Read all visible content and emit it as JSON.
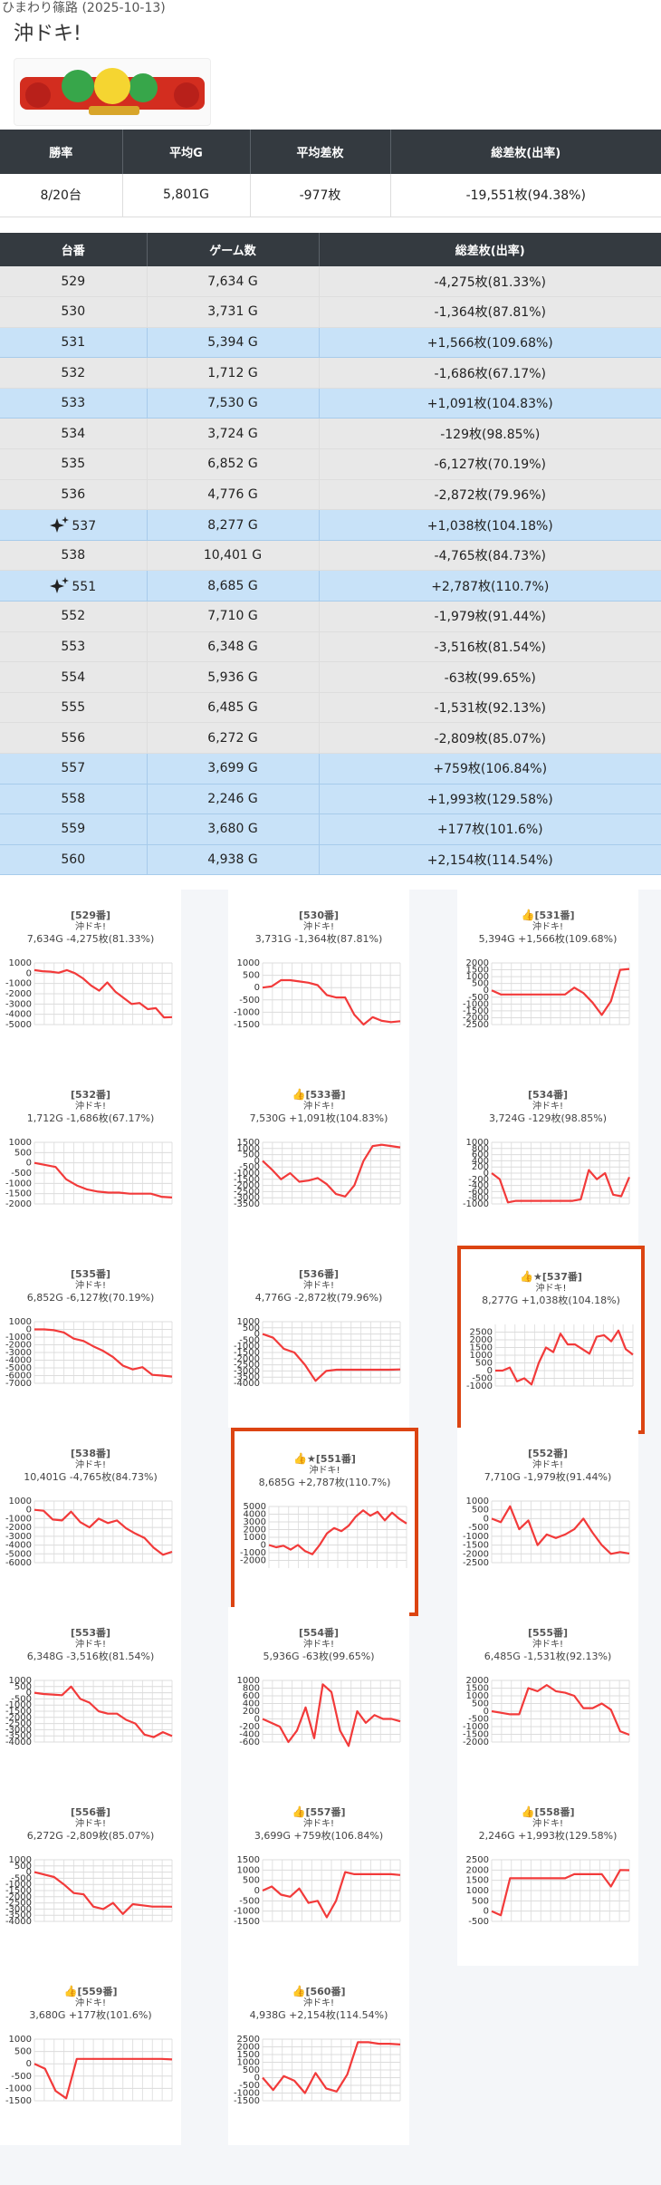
{
  "header": {
    "hall": "ひまわり篠路 (2025-10-13)",
    "title": "沖ドキ!",
    "logo_text": "沖ドキ!"
  },
  "summary": {
    "headers": [
      "勝率",
      "平均G",
      "平均差枚",
      "総差枚(出率)"
    ],
    "values": [
      "8/20台",
      "5,801G",
      "-977枚",
      "-19,551枚(94.38%)"
    ]
  },
  "machine_table": {
    "headers": [
      "台番",
      "ゲーム数",
      "総差枚(出率)"
    ],
    "rows": [
      {
        "no": "529",
        "games": "7,634 G",
        "diff": "-4,275枚(81.33%)",
        "win": false,
        "star": false
      },
      {
        "no": "530",
        "games": "3,731 G",
        "diff": "-1,364枚(87.81%)",
        "win": false,
        "star": false
      },
      {
        "no": "531",
        "games": "5,394 G",
        "diff": "+1,566枚(109.68%)",
        "win": true,
        "star": false
      },
      {
        "no": "532",
        "games": "1,712 G",
        "diff": "-1,686枚(67.17%)",
        "win": false,
        "star": false
      },
      {
        "no": "533",
        "games": "7,530 G",
        "diff": "+1,091枚(104.83%)",
        "win": true,
        "star": false
      },
      {
        "no": "534",
        "games": "3,724 G",
        "diff": "-129枚(98.85%)",
        "win": false,
        "star": false
      },
      {
        "no": "535",
        "games": "6,852 G",
        "diff": "-6,127枚(70.19%)",
        "win": false,
        "star": false
      },
      {
        "no": "536",
        "games": "4,776 G",
        "diff": "-2,872枚(79.96%)",
        "win": false,
        "star": false
      },
      {
        "no": "537",
        "games": "8,277 G",
        "diff": "+1,038枚(104.18%)",
        "win": true,
        "star": true
      },
      {
        "no": "538",
        "games": "10,401 G",
        "diff": "-4,765枚(84.73%)",
        "win": false,
        "star": false
      },
      {
        "no": "551",
        "games": "8,685 G",
        "diff": "+2,787枚(110.7%)",
        "win": true,
        "star": true
      },
      {
        "no": "552",
        "games": "7,710 G",
        "diff": "-1,979枚(91.44%)",
        "win": false,
        "star": false
      },
      {
        "no": "553",
        "games": "6,348 G",
        "diff": "-3,516枚(81.54%)",
        "win": false,
        "star": false
      },
      {
        "no": "554",
        "games": "5,936 G",
        "diff": "-63枚(99.65%)",
        "win": false,
        "star": false
      },
      {
        "no": "555",
        "games": "6,485 G",
        "diff": "-1,531枚(92.13%)",
        "win": false,
        "star": false
      },
      {
        "no": "556",
        "games": "6,272 G",
        "diff": "-2,809枚(85.07%)",
        "win": false,
        "star": false
      },
      {
        "no": "557",
        "games": "3,699 G",
        "diff": "+759枚(106.84%)",
        "win": true,
        "star": false
      },
      {
        "no": "558",
        "games": "2,246 G",
        "diff": "+1,993枚(129.58%)",
        "win": true,
        "star": false
      },
      {
        "no": "559",
        "games": "3,680 G",
        "diff": "+177枚(101.6%)",
        "win": true,
        "star": false
      },
      {
        "no": "560",
        "games": "4,938 G",
        "diff": "+2,154枚(114.54%)",
        "win": true,
        "star": false
      }
    ]
  },
  "chart_data": [
    {
      "type": "line",
      "title": "[529番]",
      "subtitle": "沖ドキ!",
      "stats": "7,634G -4,275枚(81.33%)",
      "thumb": false,
      "star": false,
      "highlight": false,
      "ylim": [
        -5000,
        1000
      ],
      "yticks": [
        1000,
        0,
        -1000,
        -2000,
        -3000,
        -4000,
        -5000
      ],
      "values": [
        300,
        200,
        150,
        50,
        300,
        0,
        -500,
        -1200,
        -1700,
        -900,
        -1800,
        -2400,
        -3000,
        -2900,
        -3500,
        -3400,
        -4300,
        -4275
      ]
    },
    {
      "type": "line",
      "title": "[530番]",
      "subtitle": "沖ドキ!",
      "stats": "3,731G -1,364枚(87.81%)",
      "thumb": false,
      "star": false,
      "highlight": false,
      "ylim": [
        -1500,
        1000
      ],
      "yticks": [
        1000,
        500,
        0,
        -500,
        -1000,
        -1500
      ],
      "values": [
        0,
        50,
        300,
        300,
        250,
        200,
        100,
        -300,
        -400,
        -400,
        -1100,
        -1500,
        -1200,
        -1350,
        -1400,
        -1364
      ]
    },
    {
      "type": "line",
      "title": "[531番]",
      "subtitle": "沖ドキ!",
      "stats": "5,394G +1,566枚(109.68%)",
      "thumb": true,
      "star": false,
      "highlight": false,
      "ylim": [
        -2500,
        2000
      ],
      "yticks": [
        2000,
        1500,
        1000,
        500,
        0,
        -500,
        -1000,
        -1500,
        -2000,
        -2500
      ],
      "values": [
        0,
        -300,
        -300,
        -300,
        -300,
        -300,
        -300,
        -300,
        -300,
        200,
        -200,
        -900,
        -1800,
        -800,
        1500,
        1566
      ]
    },
    {
      "type": "line",
      "title": "[532番]",
      "subtitle": "沖ドキ!",
      "stats": "1,712G -1,686枚(67.17%)",
      "thumb": false,
      "star": false,
      "highlight": false,
      "ylim": [
        -2000,
        1000
      ],
      "yticks": [
        1000,
        500,
        0,
        -500,
        -1000,
        -1500,
        -2000
      ],
      "values": [
        0,
        -100,
        -200,
        -800,
        -1100,
        -1300,
        -1400,
        -1450,
        -1450,
        -1500,
        -1500,
        -1500,
        -1650,
        -1686
      ]
    },
    {
      "type": "line",
      "title": "[533番]",
      "subtitle": "沖ドキ!",
      "stats": "7,530G +1,091枚(104.83%)",
      "thumb": true,
      "star": false,
      "highlight": false,
      "ylim": [
        -3500,
        1500
      ],
      "yticks": [
        1500,
        1000,
        500,
        0,
        -500,
        -1000,
        -1500,
        -2000,
        -2500,
        -3000,
        -3500
      ],
      "values": [
        0,
        -700,
        -1500,
        -1000,
        -1700,
        -1600,
        -1400,
        -1900,
        -2700,
        -2900,
        -2000,
        0,
        1200,
        1300,
        1200,
        1091
      ]
    },
    {
      "type": "line",
      "title": "[534番]",
      "subtitle": "沖ドキ!",
      "stats": "3,724G -129枚(98.85%)",
      "thumb": false,
      "star": false,
      "highlight": false,
      "ylim": [
        -1000,
        1000
      ],
      "yticks": [
        1000,
        800,
        600,
        400,
        200,
        0,
        -200,
        -400,
        -600,
        -800,
        -1000
      ],
      "values": [
        0,
        -200,
        -950,
        -900,
        -900,
        -900,
        -900,
        -900,
        -900,
        -900,
        -900,
        -850,
        100,
        -200,
        0,
        -700,
        -750,
        -129
      ]
    },
    {
      "type": "line",
      "title": "[535番]",
      "subtitle": "沖ドキ!",
      "stats": "6,852G -6,127枚(70.19%)",
      "thumb": false,
      "star": false,
      "highlight": false,
      "ylim": [
        -7000,
        1000
      ],
      "yticks": [
        1000,
        0,
        -1000,
        -2000,
        -3000,
        -4000,
        -5000,
        -6000,
        -7000
      ],
      "values": [
        0,
        0,
        -100,
        -400,
        -1200,
        -1500,
        -2200,
        -2800,
        -3600,
        -4700,
        -5200,
        -4900,
        -5900,
        -6000,
        -6127
      ]
    },
    {
      "type": "line",
      "title": "[536番]",
      "subtitle": "沖ドキ!",
      "stats": "4,776G -2,872枚(79.96%)",
      "thumb": false,
      "star": false,
      "highlight": false,
      "ylim": [
        -4000,
        1000
      ],
      "yticks": [
        1000,
        500,
        0,
        -500,
        -1000,
        -1500,
        -2000,
        -2500,
        -3000,
        -3500,
        -4000
      ],
      "values": [
        0,
        -300,
        -1200,
        -1500,
        -2500,
        -3800,
        -3000,
        -2900,
        -2900,
        -2900,
        -2900,
        -2900,
        -2900,
        -2872
      ]
    },
    {
      "type": "line",
      "title": "[537番]",
      "subtitle": "沖ドキ!",
      "stats": "8,277G +1,038枚(104.18%)",
      "thumb": true,
      "star": true,
      "highlight": true,
      "ylim": [
        -1000,
        3000
      ],
      "yticks": [
        2500,
        2000,
        1500,
        1000,
        500,
        0,
        -500,
        -1000
      ],
      "values": [
        0,
        0,
        200,
        -700,
        -500,
        -900,
        500,
        1500,
        1200,
        2400,
        1700,
        1700,
        1400,
        1100,
        2200,
        2300,
        1900,
        2600,
        1400,
        1038
      ]
    },
    {
      "type": "line",
      "title": "[538番]",
      "subtitle": "沖ドキ!",
      "stats": "10,401G -4,765枚(84.73%)",
      "thumb": false,
      "star": false,
      "highlight": false,
      "ylim": [
        -6000,
        1000
      ],
      "yticks": [
        1000,
        0,
        -1000,
        -2000,
        -3000,
        -4000,
        -5000,
        -6000
      ],
      "values": [
        0,
        -100,
        -1100,
        -1200,
        -200,
        -1400,
        -2000,
        -1000,
        -1500,
        -1200,
        -2100,
        -2700,
        -3200,
        -4300,
        -5100,
        -4765
      ]
    },
    {
      "type": "line",
      "title": "[551番]",
      "subtitle": "沖ドキ!",
      "stats": "8,685G +2,787枚(110.7%)",
      "thumb": true,
      "star": true,
      "highlight": true,
      "ylim": [
        -3000,
        5000
      ],
      "yticks": [
        5000,
        4000,
        3000,
        2000,
        1000,
        0,
        -1000,
        -2000
      ],
      "values": [
        0,
        -300,
        -100,
        -600,
        0,
        -800,
        -1200,
        0,
        1500,
        2200,
        1800,
        2500,
        3700,
        4500,
        3800,
        4300,
        3200,
        4200,
        3400,
        2787
      ]
    },
    {
      "type": "line",
      "title": "[552番]",
      "subtitle": "沖ドキ!",
      "stats": "7,710G -1,979枚(91.44%)",
      "thumb": false,
      "star": false,
      "highlight": false,
      "ylim": [
        -2500,
        1000
      ],
      "yticks": [
        1000,
        500,
        0,
        -500,
        -1000,
        -1500,
        -2000,
        -2500
      ],
      "values": [
        0,
        -200,
        700,
        -600,
        -100,
        -1500,
        -900,
        -1100,
        -900,
        -600,
        0,
        -800,
        -1500,
        -2000,
        -1900,
        -1979
      ]
    },
    {
      "type": "line",
      "title": "[553番]",
      "subtitle": "沖ドキ!",
      "stats": "6,348G -3,516枚(81.54%)",
      "thumb": false,
      "star": false,
      "highlight": false,
      "ylim": [
        -4000,
        1000
      ],
      "yticks": [
        1000,
        500,
        0,
        -500,
        -1000,
        -1500,
        -2000,
        -2500,
        -3000,
        -3500,
        -4000
      ],
      "values": [
        0,
        -100,
        -150,
        -200,
        500,
        -500,
        -800,
        -1500,
        -1700,
        -1700,
        -2200,
        -2500,
        -3400,
        -3600,
        -3200,
        -3516
      ]
    },
    {
      "type": "line",
      "title": "[554番]",
      "subtitle": "沖ドキ!",
      "stats": "5,936G -63枚(99.65%)",
      "thumb": false,
      "star": false,
      "highlight": false,
      "ylim": [
        -600,
        1000
      ],
      "yticks": [
        1000,
        800,
        600,
        400,
        200,
        0,
        -200,
        -400,
        -600
      ],
      "values": [
        0,
        -100,
        -200,
        -600,
        -300,
        300,
        -500,
        900,
        700,
        -300,
        -700,
        200,
        -100,
        100,
        0,
        0,
        -63
      ]
    },
    {
      "type": "line",
      "title": "[555番]",
      "subtitle": "沖ドキ!",
      "stats": "6,485G -1,531枚(92.13%)",
      "thumb": false,
      "star": false,
      "highlight": false,
      "ylim": [
        -2000,
        2000
      ],
      "yticks": [
        2000,
        1500,
        1000,
        500,
        0,
        -500,
        -1000,
        -1500,
        -2000
      ],
      "values": [
        0,
        -100,
        -200,
        -200,
        1500,
        1300,
        1700,
        1300,
        1200,
        1000,
        200,
        200,
        500,
        100,
        -1300,
        -1531
      ]
    },
    {
      "type": "line",
      "title": "[556番]",
      "subtitle": "沖ドキ!",
      "stats": "6,272G -2,809枚(85.07%)",
      "thumb": false,
      "star": false,
      "highlight": false,
      "ylim": [
        -4000,
        1000
      ],
      "yticks": [
        1000,
        500,
        0,
        -500,
        -1000,
        -1500,
        -2000,
        -2500,
        -3000,
        -3500,
        -4000
      ],
      "values": [
        0,
        -200,
        -400,
        -1000,
        -1700,
        -1800,
        -2800,
        -3000,
        -2500,
        -3400,
        -2600,
        -2700,
        -2800,
        -2800,
        -2809
      ]
    },
    {
      "type": "line",
      "title": "[557番]",
      "subtitle": "沖ドキ!",
      "stats": "3,699G +759枚(106.84%)",
      "thumb": true,
      "star": false,
      "highlight": false,
      "ylim": [
        -1500,
        1500
      ],
      "yticks": [
        1500,
        1000,
        500,
        0,
        -500,
        -1000,
        -1500
      ],
      "values": [
        0,
        200,
        -200,
        -300,
        100,
        -600,
        -500,
        -1300,
        -500,
        900,
        800,
        800,
        800,
        800,
        800,
        759
      ]
    },
    {
      "type": "line",
      "title": "[558番]",
      "subtitle": "沖ドキ!",
      "stats": "2,246G +1,993枚(129.58%)",
      "thumb": true,
      "star": false,
      "highlight": false,
      "ylim": [
        -500,
        2500
      ],
      "yticks": [
        2500,
        2000,
        1500,
        1000,
        500,
        0,
        -500
      ],
      "values": [
        0,
        -200,
        1600,
        1600,
        1600,
        1600,
        1600,
        1600,
        1600,
        1800,
        1800,
        1800,
        1800,
        1200,
        2000,
        1993
      ]
    },
    {
      "type": "line",
      "title": "[559番]",
      "subtitle": "沖ドキ!",
      "stats": "3,680G +177枚(101.6%)",
      "thumb": true,
      "star": false,
      "highlight": false,
      "ylim": [
        -1500,
        1000
      ],
      "yticks": [
        1000,
        500,
        0,
        -500,
        -1000,
        -1500
      ],
      "values": [
        0,
        -200,
        -1100,
        -1400,
        200,
        200,
        200,
        200,
        200,
        200,
        200,
        200,
        200,
        177
      ]
    },
    {
      "type": "line",
      "title": "[560番]",
      "subtitle": "沖ドキ!",
      "stats": "4,938G +2,154枚(114.54%)",
      "thumb": true,
      "star": false,
      "highlight": false,
      "ylim": [
        -1500,
        2500
      ],
      "yticks": [
        2500,
        2000,
        1500,
        1000,
        500,
        0,
        -500,
        -1000,
        -1500
      ],
      "values": [
        0,
        -800,
        100,
        -200,
        -1000,
        300,
        -700,
        -900,
        200,
        2300,
        2300,
        2200,
        2200,
        2154
      ]
    }
  ]
}
